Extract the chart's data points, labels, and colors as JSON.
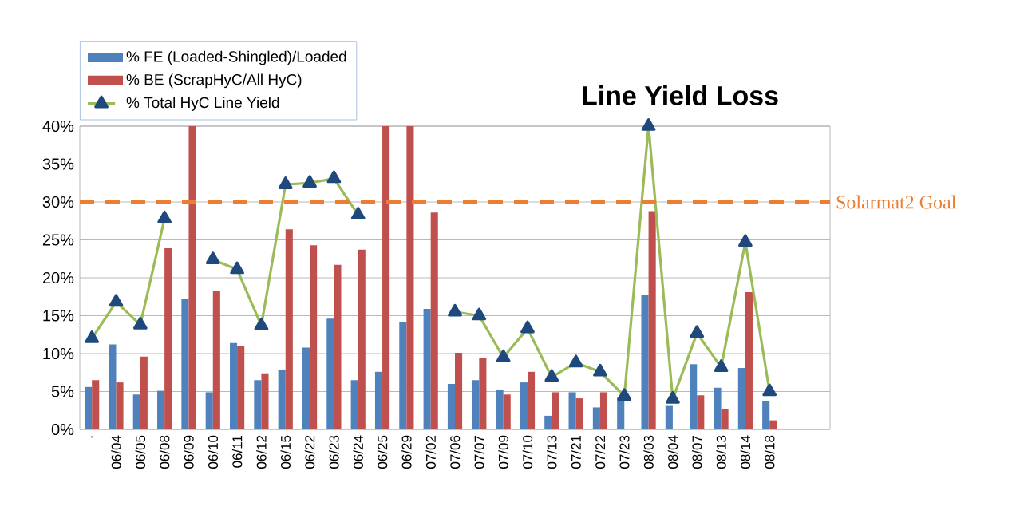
{
  "chart_data": {
    "type": "bar",
    "title": "Line Yield Loss",
    "categories": [
      ".",
      "06/04",
      "06/05",
      "06/08",
      "06/09",
      "06/10",
      "06/11",
      "06/12",
      "06/15",
      "06/22",
      "06/23",
      "06/24",
      "06/25",
      "06/29",
      "07/02",
      "07/06",
      "07/07",
      "07/09",
      "07/10",
      "07/13",
      "07/21",
      "07/22",
      "07/23",
      "08/03",
      "08/04",
      "08/07",
      "08/13",
      "08/14",
      "08/18",
      null,
      null
    ],
    "series": [
      {
        "name": "% FE    (Loaded-Shingled)/Loaded",
        "color": "#4f81bd",
        "values": [
          5.6,
          11.2,
          4.6,
          5.1,
          17.2,
          4.9,
          11.4,
          6.5,
          7.9,
          10.8,
          14.6,
          6.5,
          7.6,
          14.1,
          15.9,
          6.0,
          6.5,
          5.2,
          6.2,
          1.8,
          4.9,
          2.9,
          4.2,
          17.8,
          3.1,
          8.6,
          5.5,
          8.1,
          3.7,
          null,
          null
        ]
      },
      {
        "name": "% BE   (ScrapHyC/All HyC)",
        "color": "#c0504d",
        "values": [
          6.5,
          6.2,
          9.6,
          23.9,
          40,
          18.3,
          11.0,
          7.4,
          26.4,
          24.3,
          21.7,
          23.7,
          40,
          40,
          28.6,
          10.1,
          9.4,
          4.6,
          7.6,
          4.9,
          4.1,
          4.9,
          0,
          28.8,
          0,
          4.5,
          2.7,
          18.1,
          1.2,
          null,
          null
        ]
      },
      {
        "name": "% Total HyC Line Yield",
        "type": "line",
        "color": "#9bbb59",
        "values": [
          12.0,
          16.8,
          13.8,
          27.8,
          null,
          22.4,
          21.1,
          13.7,
          32.3,
          32.5,
          33.1,
          28.3,
          null,
          null,
          null,
          15.5,
          15.0,
          9.5,
          13.3,
          6.9,
          8.8,
          7.6,
          4.4,
          40,
          4.0,
          12.7,
          8.2,
          24.7,
          5.0,
          null,
          null
        ]
      }
    ],
    "ylim": [
      0,
      40
    ],
    "yticks": [
      {
        "value": 0,
        "label": "0%"
      },
      {
        "value": 5,
        "label": "5%"
      },
      {
        "value": 10,
        "label": "10%"
      },
      {
        "value": 15,
        "label": "15%"
      },
      {
        "value": 20,
        "label": "20%"
      },
      {
        "value": 25,
        "label": "25%"
      },
      {
        "value": 30,
        "label": "30%"
      },
      {
        "value": 35,
        "label": "35%"
      },
      {
        "value": 40,
        "label": "40%"
      }
    ],
    "grid": "y",
    "legend": "top left",
    "marker": "triangle",
    "ref_lines": [
      {
        "axis": "y",
        "value": 30,
        "label": "Solarmat2 Goal",
        "color": "#ed7d31",
        "line_style": "dashed"
      }
    ]
  }
}
